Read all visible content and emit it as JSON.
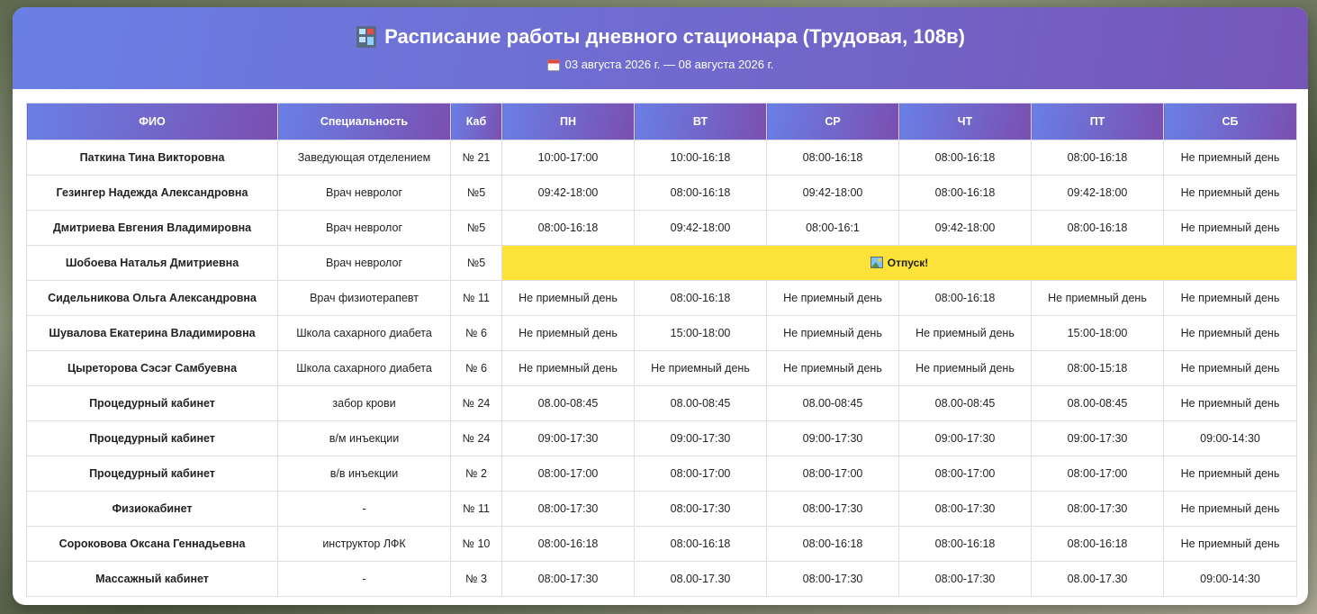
{
  "header": {
    "title": "Расписание работы дневного стационара (Трудовая, 108в)",
    "dates": "03 августа 2026 г. — 08 августа 2026 г."
  },
  "table": {
    "columns": [
      "ФИО",
      "Специальность",
      "Каб",
      "ПН",
      "ВТ",
      "СР",
      "ЧТ",
      "ПТ",
      "СБ"
    ],
    "rows": [
      [
        "Паткина Тина Викторовна",
        "Заведующая отделением",
        "№ 21",
        "10:00-17:00",
        "10:00-16:18",
        "08:00-16:18",
        "08:00-16:18",
        "08:00-16:18",
        "Не приемный день"
      ],
      [
        "Гезингер Надежда Александровна",
        "Врач невролог",
        "№5",
        "09:42-18:00",
        "08:00-16:18",
        "09:42-18:00",
        "08:00-16:18",
        "09:42-18:00",
        "Не приемный день"
      ],
      [
        "Дмитриева Евгения Владимировна",
        "Врач невролог",
        "№5",
        "08:00-16:18",
        "09:42-18:00",
        "08:00-16:1",
        "09:42-18:00",
        "08:00-16:18",
        "Не приемный день"
      ],
      [
        "Шобоева Наталья Дмитриевна",
        "Врач невролог",
        "№5",
        "Отпуск!"
      ],
      [
        "Сидельникова Ольга Александровна",
        "Врач физиотерапевт",
        "№ 11",
        "Не приемный день",
        "08:00-16:18",
        "Не приемный день",
        "08:00-16:18",
        "Не приемный день",
        "Не приемный день"
      ],
      [
        "Шувалова Екатерина Владимировна",
        "Школа сахарного диабета",
        "№ 6",
        "Не приемный день",
        "15:00-18:00",
        "Не приемный день",
        "Не приемный день",
        "15:00-18:00",
        "Не приемный день"
      ],
      [
        "Цыреторова Сэсэг Самбуевна",
        "Школа сахарного диабета",
        "№ 6",
        "Не приемный день",
        "Не приемный день",
        "Не приемный день",
        "Не приемный день",
        "08:00-15:18",
        "Не приемный день"
      ],
      [
        "Процедурный кабинет",
        "забор крови",
        "№ 24",
        "08.00-08:45",
        "08.00-08:45",
        "08.00-08:45",
        "08.00-08:45",
        "08.00-08:45",
        "Не приемный день"
      ],
      [
        "Процедурный кабинет",
        "в/м инъекции",
        "№ 24",
        "09:00-17:30",
        "09:00-17:30",
        "09:00-17:30",
        "09:00-17:30",
        "09:00-17:30",
        "09:00-14:30"
      ],
      [
        "Процедурный кабинет",
        "в/в инъекции",
        "№ 2",
        "08:00-17:00",
        "08:00-17:00",
        "08:00-17:00",
        "08:00-17:00",
        "08:00-17:00",
        "Не приемный день"
      ],
      [
        "Физиокабинет",
        "-",
        "№ 11",
        "08:00-17:30",
        "08:00-17:30",
        "08:00-17:30",
        "08:00-17:30",
        "08:00-17:30",
        "Не приемный день"
      ],
      [
        "Сороковова Оксана Геннадьевна",
        "инструктор ЛФК",
        "№ 10",
        "08:00-16:18",
        "08:00-16:18",
        "08:00-16:18",
        "08:00-16:18",
        "08:00-16:18",
        "Не приемный день"
      ],
      [
        "Массажный кабинет",
        "-",
        "№ 3",
        "08:00-17:30",
        "08.00-17.30",
        "08:00-17:30",
        "08:00-17:30",
        "08.00-17.30",
        "09:00-14:30"
      ]
    ]
  }
}
